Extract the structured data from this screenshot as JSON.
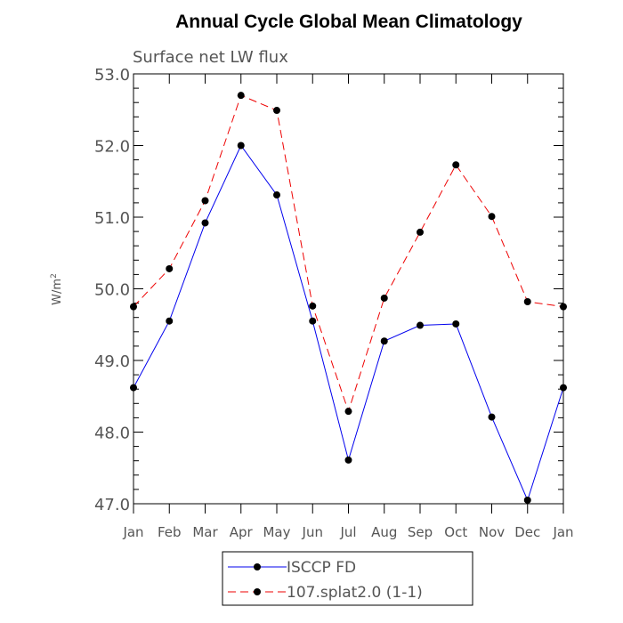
{
  "chart_data": {
    "type": "line",
    "title": "Annual Cycle Global Mean Climatology",
    "subtitle": "Surface net LW flux",
    "ylabel": "W/m",
    "ylabel_sup": "2",
    "ylim": [
      47.0,
      53.0
    ],
    "yticks": [
      "47.0",
      "48.0",
      "49.0",
      "50.0",
      "51.0",
      "52.0",
      "53.0"
    ],
    "categories": [
      "Jan",
      "Feb",
      "Mar",
      "Apr",
      "May",
      "Jun",
      "Jul",
      "Aug",
      "Sep",
      "Oct",
      "Nov",
      "Dec",
      "Jan"
    ],
    "series": [
      {
        "name": "ISCCP FD",
        "color": "#0000ee",
        "dash": "solid",
        "values": [
          48.62,
          49.55,
          50.92,
          52.0,
          51.31,
          49.55,
          47.61,
          49.27,
          49.49,
          49.51,
          48.21,
          47.05,
          48.62
        ]
      },
      {
        "name": "107.splat2.0 (1-1)",
        "color": "#ee0000",
        "dash": "dashed",
        "values": [
          49.75,
          50.28,
          51.23,
          52.7,
          52.49,
          49.76,
          48.29,
          49.87,
          50.79,
          51.73,
          51.01,
          49.82,
          49.75
        ]
      }
    ],
    "legend_position": "bottom-center"
  }
}
